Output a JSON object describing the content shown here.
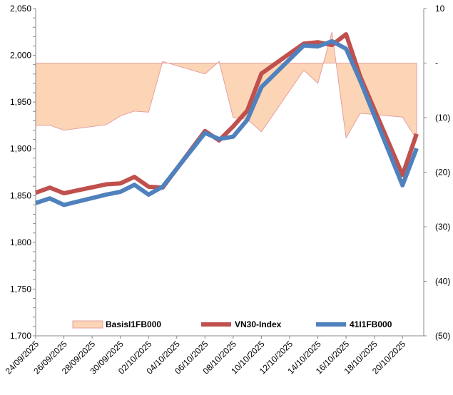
{
  "chart_data": {
    "type": "line",
    "title": "",
    "dates": [
      "24/09/2025",
      "25/09/2025",
      "26/09/2025",
      "29/09/2025",
      "30/09/2025",
      "01/10/2025",
      "02/10/2025",
      "03/10/2025",
      "06/10/2025",
      "07/10/2025",
      "08/10/2025",
      "09/10/2025",
      "10/10/2025",
      "13/10/2025",
      "14/10/2025",
      "15/10/2025",
      "16/10/2025",
      "17/10/2025",
      "20/10/2025",
      "21/10/2025"
    ],
    "x_tick_labels": [
      "24/09/2025",
      "26/09/2025",
      "28/09/2025",
      "30/09/2025",
      "02/10/2025",
      "04/10/2025",
      "06/10/2025",
      "08/10/2025",
      "10/10/2025",
      "12/10/2025",
      "14/10/2025",
      "16/10/2025",
      "18/10/2025",
      "20/10/2025"
    ],
    "left_axis": {
      "ylim": [
        1700,
        2050
      ],
      "ticks": [
        "1,700",
        "1,750",
        "1,800",
        "1,850",
        "1,900",
        "1,950",
        "2,000",
        "2,050"
      ]
    },
    "right_axis": {
      "ylim": [
        -50,
        10
      ],
      "ticks": [
        "(50)",
        "(40)",
        "(30)",
        "(20)",
        "(10)",
        "-",
        "10"
      ]
    },
    "series": [
      {
        "name": "BasisI1FB000",
        "type": "area",
        "axis": "right",
        "color": "#FBD5B5",
        "stroke": "#E6A0A0",
        "values": [
          -11.4,
          -11.4,
          -12.3,
          -11.3,
          -9.7,
          -8.8,
          -9.0,
          0.3,
          -2.0,
          0.3,
          -10.0,
          -10.3,
          -12.6,
          -1.3,
          -3.7,
          5.7,
          -13.7,
          -9.2,
          -9.9,
          -14.0
        ]
      },
      {
        "name": "VN30-Index",
        "type": "line",
        "axis": "left",
        "color": "#C0504D",
        "values": [
          1853,
          1858.5,
          1852.5,
          1862,
          1863,
          1870,
          1859.5,
          1858.5,
          1919,
          1909,
          1924,
          1941,
          1980.5,
          2012.5,
          2014,
          2011,
          2022.5,
          1977.5,
          1872,
          1916
        ]
      },
      {
        "name": "41I1FB000",
        "type": "line",
        "axis": "left",
        "color": "#4F81BD",
        "values": [
          1842,
          1847,
          1840,
          1851,
          1854,
          1861.5,
          1851,
          1859.5,
          1917,
          1910.5,
          1913,
          1931,
          1966,
          2010.5,
          2009.5,
          2015,
          2007,
          1973,
          1861,
          1900.5
        ]
      }
    ],
    "legend_position": "bottom-inside"
  }
}
